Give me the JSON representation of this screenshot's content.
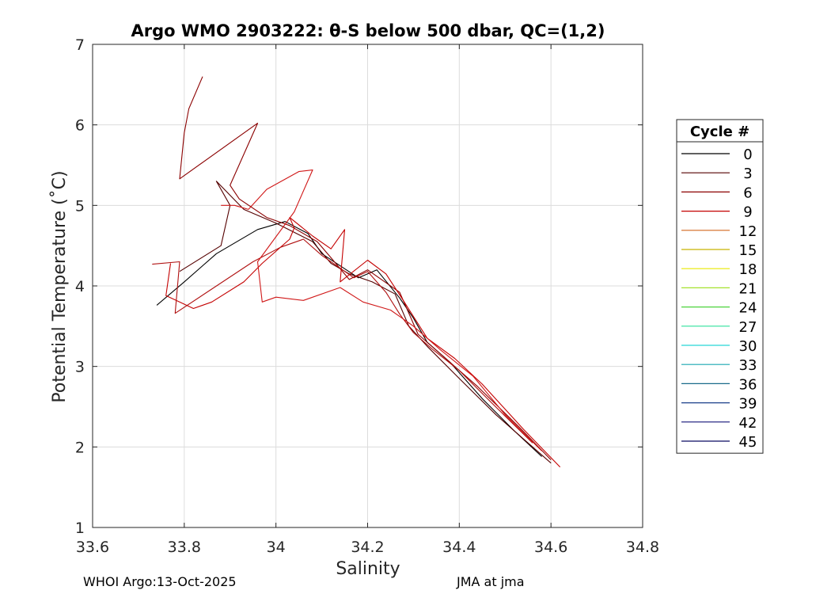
{
  "chart_data": {
    "type": "line",
    "title": "Argo WMO 2903222: θ-S below 500 dbar,  QC=(1,2)",
    "xlabel": "Salinity",
    "ylabel": "Potential Temperature (˚C)",
    "xlim": [
      33.6,
      34.8
    ],
    "ylim": [
      1,
      7
    ],
    "xticks": [
      "33.6",
      "33.8",
      "34",
      "34.2",
      "34.4",
      "34.6",
      "34.8"
    ],
    "yticks": [
      "1",
      "2",
      "3",
      "4",
      "5",
      "6",
      "7"
    ],
    "grid": true,
    "legend": {
      "title": "Cycle #",
      "position": "right",
      "entries": [
        "0",
        "3",
        "6",
        "9",
        "12",
        "15",
        "18",
        "21",
        "24",
        "27",
        "30",
        "33",
        "36",
        "39",
        "42",
        "45"
      ],
      "colors": [
        "#000000",
        "#550000",
        "#8b0000",
        "#c40000",
        "#d2691e",
        "#c8b400",
        "#e8e800",
        "#a6e22e",
        "#4cd43c",
        "#2ee29c",
        "#28d8d8",
        "#1aa7b0",
        "#1a6b8a",
        "#1a3f8a",
        "#141478",
        "#0a0a60"
      ]
    },
    "series": [
      {
        "color": "#000000",
        "x": [
          33.74,
          33.8,
          33.87,
          33.96,
          34.02,
          34.07,
          34.1,
          34.14,
          34.18,
          34.22,
          34.27,
          34.3,
          34.33,
          34.38,
          34.45,
          34.52,
          34.58
        ],
        "y": [
          3.76,
          4.05,
          4.4,
          4.7,
          4.8,
          4.65,
          4.4,
          4.25,
          4.1,
          4.2,
          3.85,
          3.6,
          3.3,
          3.05,
          2.6,
          2.2,
          1.88
        ]
      },
      {
        "color": "#550000",
        "x": [
          33.79,
          33.88,
          33.9,
          33.87,
          33.93,
          34.0,
          34.08,
          34.12,
          34.16,
          34.21,
          34.26,
          34.29,
          34.33,
          34.4,
          34.48,
          34.55,
          34.6
        ],
        "y": [
          4.18,
          4.5,
          5.0,
          5.3,
          4.95,
          4.78,
          4.55,
          4.28,
          4.15,
          4.05,
          3.9,
          3.5,
          3.25,
          2.85,
          2.4,
          2.05,
          1.8
        ]
      },
      {
        "color": "#8b0000",
        "x": [
          33.84,
          33.81,
          33.8,
          33.79,
          33.96,
          33.9,
          33.92,
          33.98,
          34.03,
          34.09,
          34.12,
          34.16,
          34.2,
          34.27,
          34.31,
          34.37,
          34.44,
          34.53,
          34.6
        ],
        "y": [
          6.6,
          6.2,
          5.9,
          5.33,
          6.02,
          5.25,
          5.08,
          4.85,
          4.75,
          4.55,
          4.35,
          4.08,
          4.2,
          3.92,
          3.4,
          3.1,
          2.75,
          2.25,
          1.84
        ]
      },
      {
        "color": "#c40000",
        "x": [
          33.77,
          33.76,
          33.82,
          33.86,
          33.93,
          33.97,
          34.03,
          34.04,
          34.03,
          34.08,
          34.12,
          34.15,
          34.14,
          34.2,
          34.24,
          34.28,
          34.33,
          34.39,
          34.45,
          34.54,
          34.62
        ],
        "y": [
          4.28,
          3.88,
          3.72,
          3.8,
          4.05,
          4.28,
          4.58,
          4.72,
          4.85,
          4.62,
          4.46,
          4.7,
          4.05,
          4.32,
          4.15,
          3.8,
          3.35,
          3.1,
          2.78,
          2.22,
          1.75
        ]
      },
      {
        "color": "#b01010",
        "x": [
          33.73,
          33.79,
          33.78,
          33.95,
          34.01,
          34.06,
          34.1,
          34.14,
          34.17,
          34.2,
          34.24,
          34.27,
          34.3,
          34.34,
          34.4,
          34.47,
          34.56
        ],
        "y": [
          4.27,
          4.3,
          3.66,
          4.3,
          4.48,
          4.58,
          4.38,
          4.22,
          4.1,
          4.18,
          3.92,
          3.65,
          3.42,
          3.22,
          2.95,
          2.55,
          2.05
        ]
      },
      {
        "color": "#d01818",
        "x": [
          33.88,
          33.91,
          33.94,
          33.98,
          34.05,
          34.08,
          34.04,
          33.96,
          33.97,
          34.0,
          34.06,
          34.14,
          34.19,
          34.25,
          34.3,
          34.36,
          34.43,
          34.5,
          34.58
        ],
        "y": [
          5.0,
          5.0,
          4.95,
          5.2,
          5.42,
          5.44,
          4.92,
          4.3,
          3.8,
          3.86,
          3.82,
          3.98,
          3.8,
          3.7,
          3.5,
          3.2,
          2.88,
          2.4,
          1.95
        ]
      }
    ]
  },
  "footer": {
    "left": "WHOI Argo:13-Oct-2025",
    "right": "JMA at jma"
  }
}
